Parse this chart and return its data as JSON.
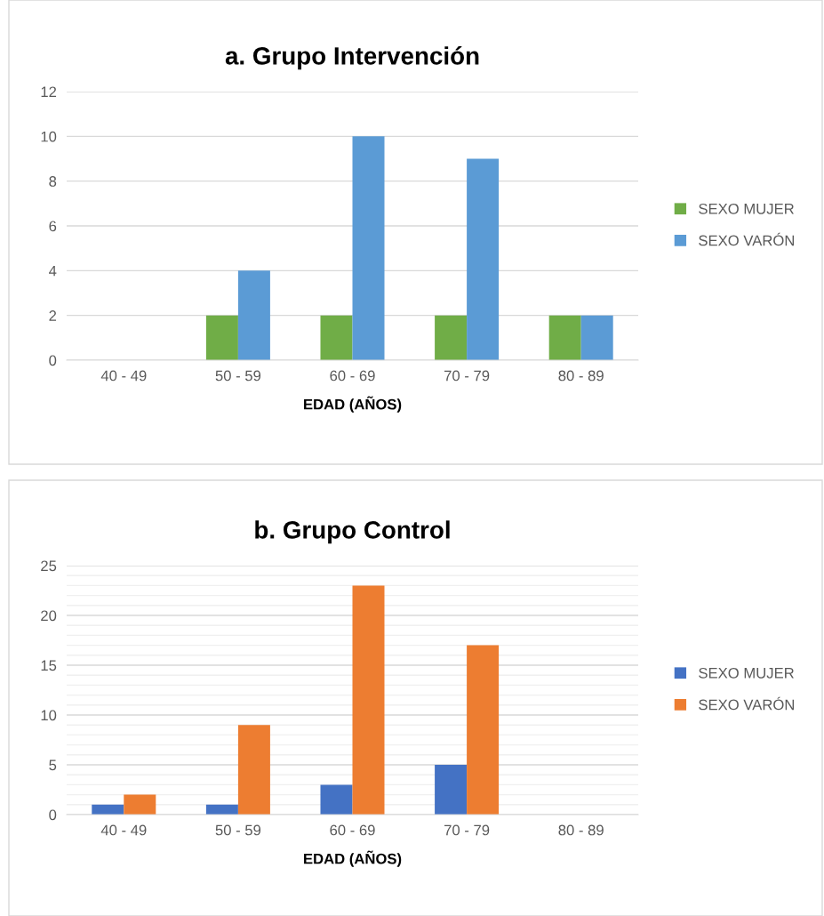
{
  "chart_data": [
    {
      "type": "bar",
      "title": "a. Grupo Intervención",
      "xlabel": "EDAD (AÑOS)",
      "categories": [
        "40 - 49",
        "50 - 59",
        "60 - 69",
        "70 - 79",
        "80 - 89"
      ],
      "series": [
        {
          "name": "SEXO MUJER",
          "color": "#70ad47",
          "values": [
            0,
            2,
            2,
            2,
            2
          ]
        },
        {
          "name": "SEXO VARÓN",
          "color": "#5b9bd5",
          "values": [
            0,
            4,
            10,
            9,
            2
          ]
        }
      ],
      "ylim": [
        0,
        12
      ],
      "yticks": [
        0,
        2,
        4,
        6,
        8,
        10,
        12
      ],
      "grid": "y",
      "legend": "right"
    },
    {
      "type": "bar",
      "title": "b. Grupo Control",
      "xlabel": "EDAD (AÑOS)",
      "categories": [
        "40 - 49",
        "50 - 59",
        "60 - 69",
        "70 - 79",
        "80 - 89"
      ],
      "series": [
        {
          "name": "SEXO MUJER",
          "color": "#4472c4",
          "values": [
            1,
            1,
            3,
            5,
            0
          ]
        },
        {
          "name": "SEXO VARÓN",
          "color": "#ed7d31",
          "values": [
            2,
            9,
            23,
            17,
            0
          ]
        }
      ],
      "ylim": [
        0,
        25
      ],
      "yticks": [
        0,
        {
          "value": 1,
          "label": null
        },
        {
          "value": 2,
          "label": null
        },
        {
          "value": 3,
          "label": null
        },
        {
          "value": 4,
          "label": null
        },
        5,
        {
          "value": 6,
          "label": null
        },
        {
          "value": 7,
          "label": null
        },
        {
          "value": 8,
          "label": null
        },
        {
          "value": 9,
          "label": null
        },
        10,
        {
          "value": 11,
          "label": null
        },
        {
          "value": 12,
          "label": null
        },
        {
          "value": 13,
          "label": null
        },
        {
          "value": 14,
          "label": null
        },
        15,
        {
          "value": 16,
          "label": null
        },
        {
          "value": 17,
          "label": null
        },
        {
          "value": 18,
          "label": null
        },
        {
          "value": 19,
          "label": null
        },
        20,
        {
          "value": 21,
          "label": null
        },
        {
          "value": 22,
          "label": null
        },
        {
          "value": 23,
          "label": null
        },
        {
          "value": 24,
          "label": null
        },
        25
      ],
      "grid": "y",
      "legend": "right"
    }
  ]
}
